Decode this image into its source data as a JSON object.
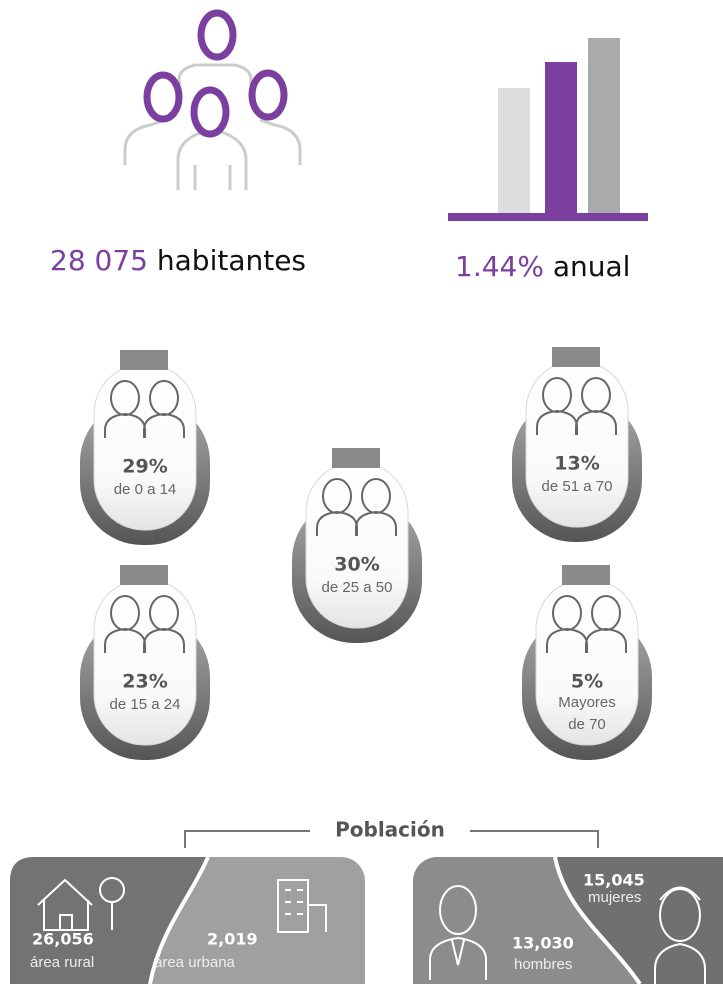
{
  "header": {
    "population_value": "28 075",
    "population_label": "habitantes",
    "growth_value": "1.44%",
    "growth_label": "anual"
  },
  "age_groups": [
    {
      "percent": "29%",
      "range": "de 0 a 14"
    },
    {
      "percent": "23%",
      "range": "de 15 a 24"
    },
    {
      "percent": "30%",
      "range": "de 25 a 50"
    },
    {
      "percent": "13%",
      "range": "de 51 a 70"
    },
    {
      "percent": "5%",
      "range_lines": [
        "Mayores",
        "de 70"
      ]
    }
  ],
  "poblacion": {
    "title": "Población",
    "rural_value": "26,056",
    "rural_label": "área rural",
    "urban_value": "2,019",
    "urban_label": "área urbana",
    "women_value": "15,045",
    "women_label": "mujeres",
    "men_value": "13,030",
    "men_label": "hombres"
  }
}
